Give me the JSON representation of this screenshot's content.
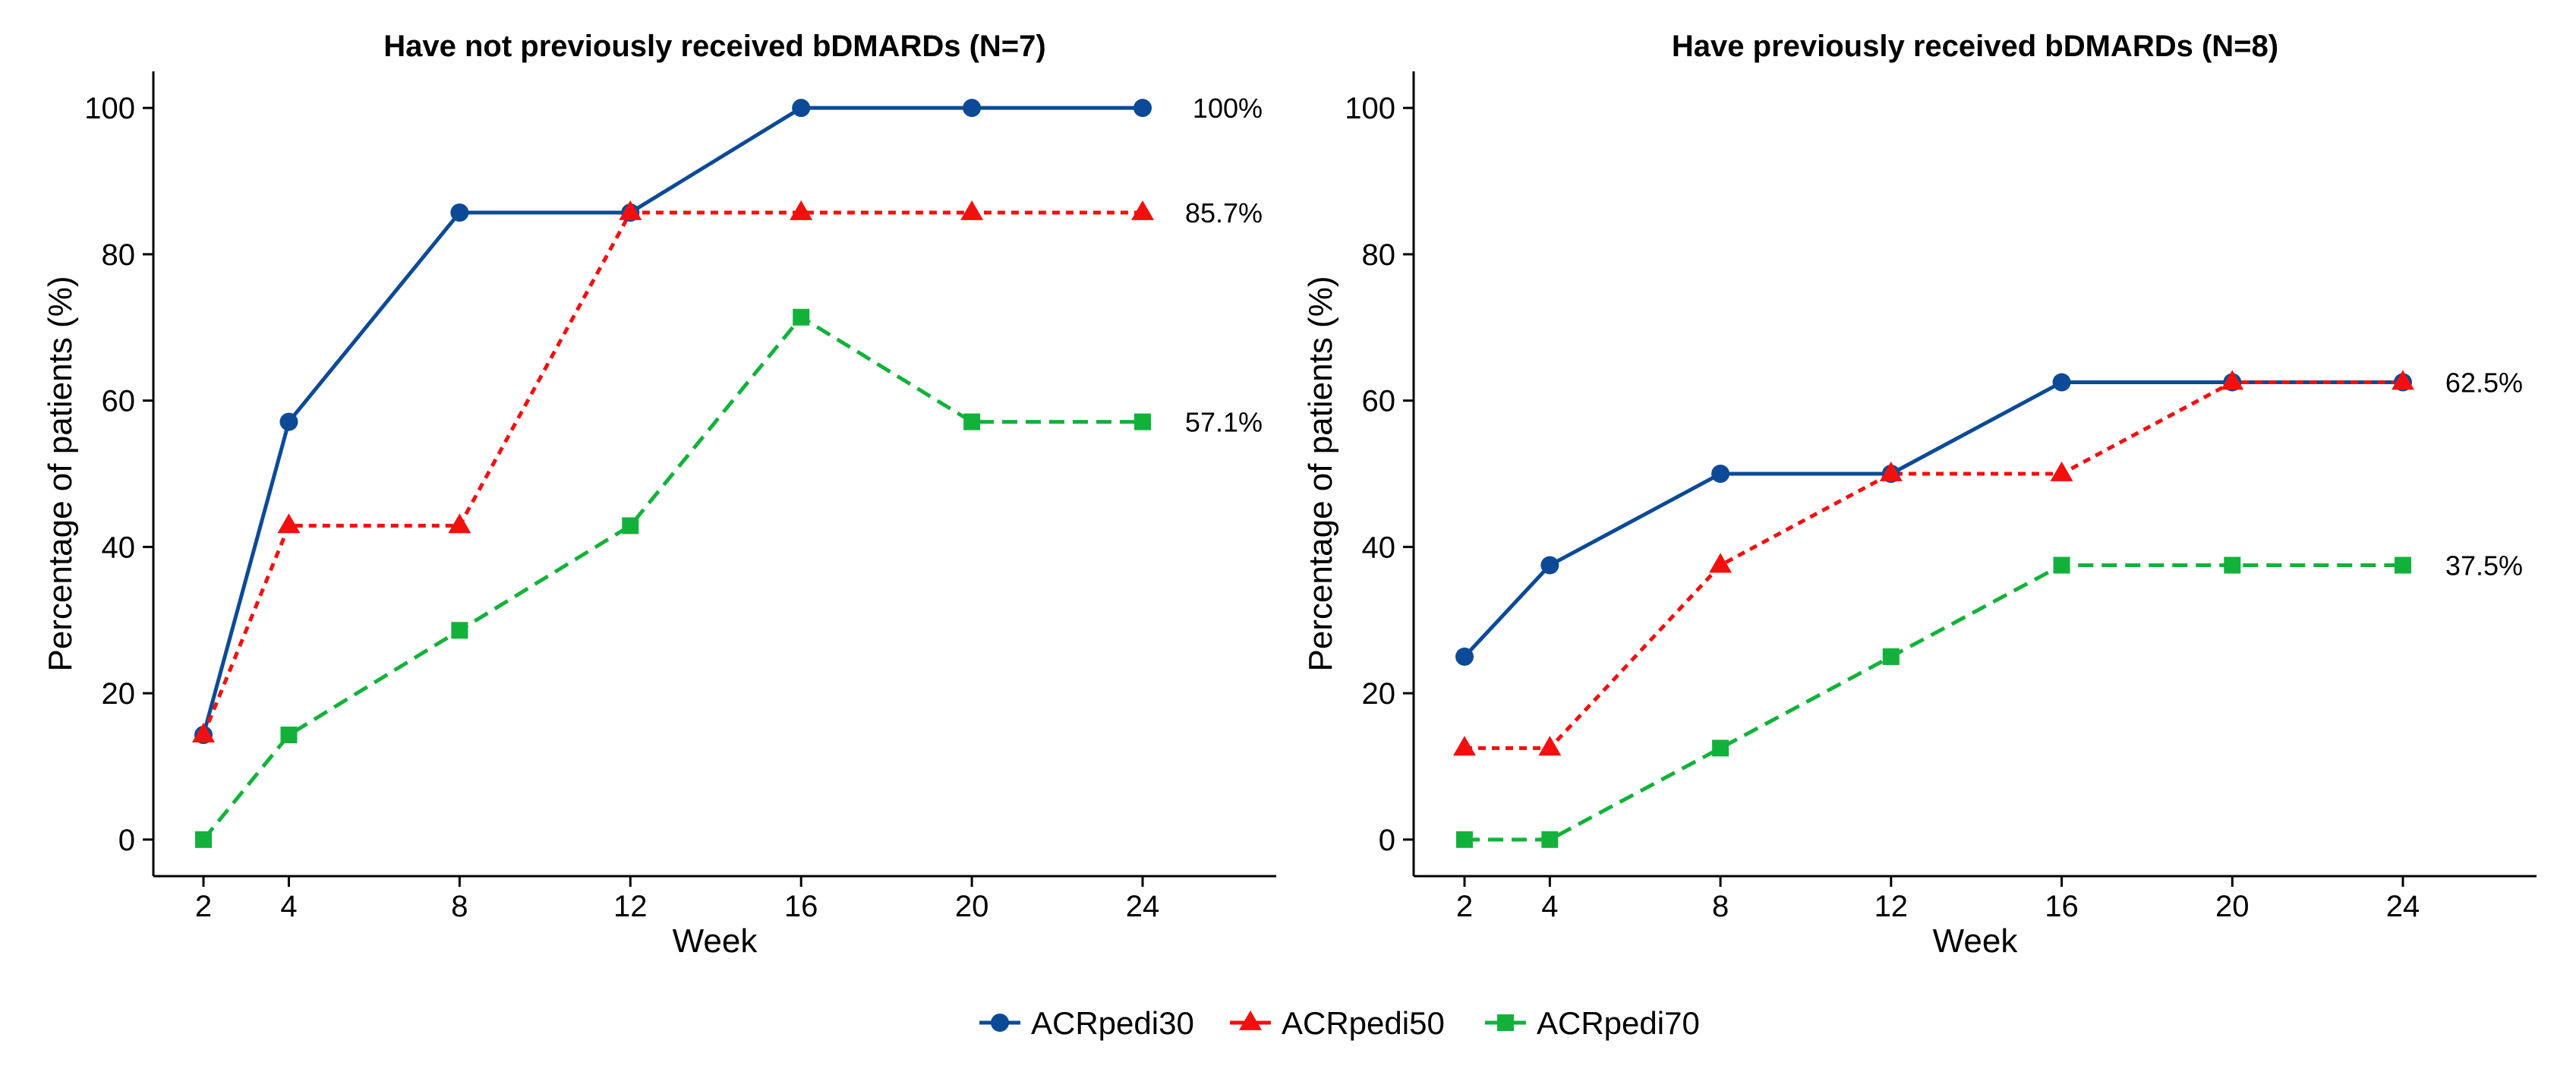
{
  "figure": {
    "legend": {
      "placement": "bottom-center",
      "entries": [
        {
          "label": "ACRpedi30",
          "marker": "circle",
          "color": "#0C4A97"
        },
        {
          "label": "ACRpedi50",
          "marker": "triangle",
          "color": "#F2100F"
        },
        {
          "label": "ACRpedi70",
          "marker": "square",
          "color": "#12B23A"
        }
      ]
    }
  },
  "chart_data": [
    {
      "type": "line",
      "title": "Have not previously received bDMARDs (N=7)",
      "xlabel": "Week",
      "ylabel": "Percentage of patients (%)",
      "x": [
        2,
        4,
        8,
        12,
        16,
        20,
        24
      ],
      "xticks": [
        "2",
        "4",
        "8",
        "12",
        "16",
        "20",
        "24"
      ],
      "yticks": [
        "0",
        "20",
        "40",
        "60",
        "80",
        "100"
      ],
      "xlim": [
        1,
        27
      ],
      "ylim": [
        -5,
        105
      ],
      "grid": false,
      "series": [
        {
          "name": "ACRpedi30",
          "values": [
            14.3,
            57.1,
            85.7,
            85.7,
            100,
            100,
            100
          ],
          "color": "#0C4A97",
          "marker": "circle",
          "dash": "solid",
          "end_label": "100%"
        },
        {
          "name": "ACRpedi50",
          "values": [
            14.3,
            42.9,
            42.9,
            85.7,
            85.7,
            85.7,
            85.7
          ],
          "color": "#F2100F",
          "marker": "triangle",
          "dash": "dotted",
          "end_label": "85.7%"
        },
        {
          "name": "ACRpedi70",
          "values": [
            0,
            14.3,
            28.6,
            42.9,
            71.4,
            57.1,
            57.1
          ],
          "color": "#12B23A",
          "marker": "square",
          "dash": "dashed",
          "end_label": "57.1%"
        }
      ]
    },
    {
      "type": "line",
      "title": "Have previously received bDMARDs (N=8)",
      "xlabel": "Week",
      "ylabel": "Percentage of patients (%)",
      "x": [
        2,
        4,
        8,
        12,
        16,
        20,
        24
      ],
      "xticks": [
        "2",
        "4",
        "8",
        "12",
        "16",
        "20",
        "24"
      ],
      "yticks": [
        "0",
        "20",
        "40",
        "60",
        "80",
        "100"
      ],
      "xlim": [
        1,
        27
      ],
      "ylim": [
        -5,
        105
      ],
      "grid": false,
      "series": [
        {
          "name": "ACRpedi30",
          "values": [
            25,
            37.5,
            50,
            50,
            62.5,
            62.5,
            62.5
          ],
          "color": "#0C4A97",
          "marker": "circle",
          "dash": "solid",
          "end_label": "62.5%"
        },
        {
          "name": "ACRpedi50",
          "values": [
            12.5,
            12.5,
            37.5,
            50,
            50,
            62.5,
            62.5
          ],
          "color": "#F2100F",
          "marker": "triangle",
          "dash": "dotted",
          "end_label": ""
        },
        {
          "name": "ACRpedi70",
          "values": [
            0,
            0,
            12.5,
            25,
            37.5,
            37.5,
            37.5
          ],
          "color": "#12B23A",
          "marker": "square",
          "dash": "dashed",
          "end_label": "37.5%"
        }
      ]
    }
  ]
}
